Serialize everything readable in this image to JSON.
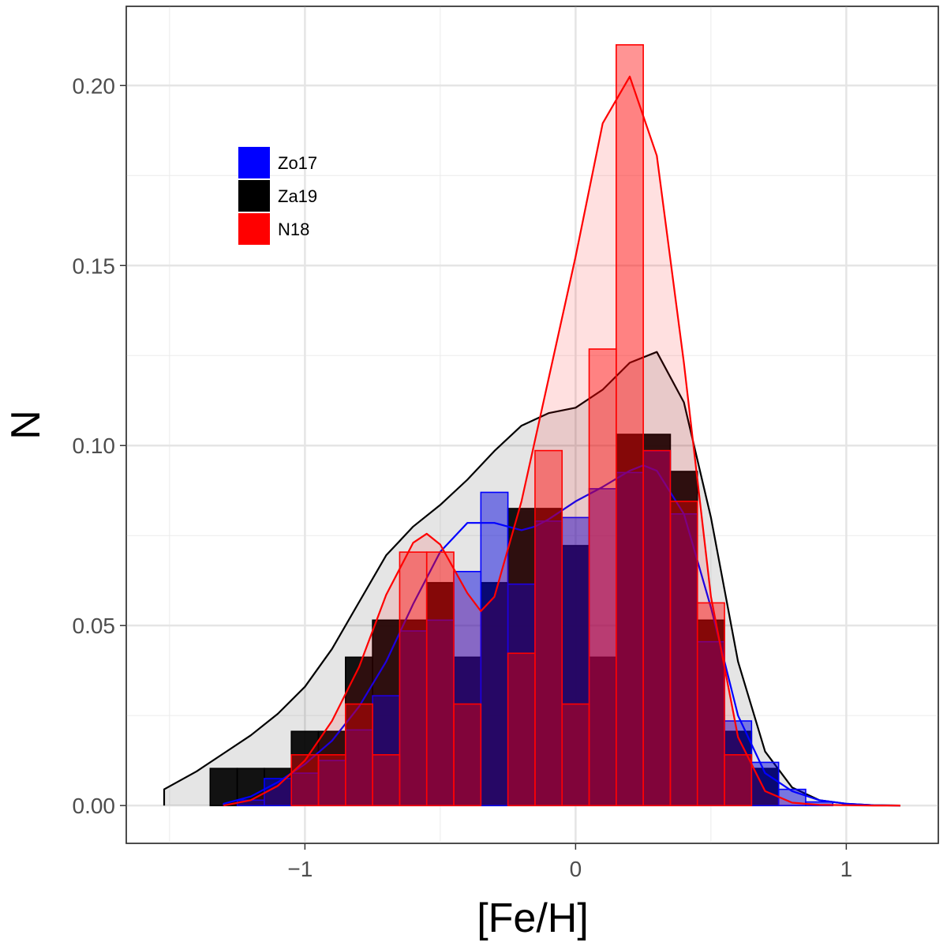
{
  "chart_data": {
    "type": "histogram+density",
    "xlabel": "[Fe/H]",
    "ylabel": "N",
    "xlim": [
      -1.66,
      1.34
    ],
    "ylim": [
      -0.0105,
      0.222
    ],
    "x_ticks": [
      -1,
      0,
      1
    ],
    "x_tick_labels": [
      "−1",
      "0",
      "1"
    ],
    "y_ticks": [
      0.0,
      0.05,
      0.1,
      0.15,
      0.2
    ],
    "y_tick_labels": [
      "0.00",
      "0.05",
      "0.10",
      "0.15",
      "0.20"
    ],
    "grid": true,
    "legend_position": "top-left",
    "legend": [
      {
        "label": "Zo17",
        "color": "#0000ff"
      },
      {
        "label": "Za19",
        "color": "#000000"
      },
      {
        "label": "N18",
        "color": "#ff0000"
      }
    ],
    "bin_width": 0.1,
    "series": [
      {
        "name": "Za19",
        "color": "#000000",
        "bin_starts": [
          -1.45,
          -1.35,
          -1.25,
          -1.15,
          -1.05,
          -0.95,
          -0.85,
          -0.75,
          -0.65,
          -0.55,
          -0.45,
          -0.35,
          -0.25,
          -0.15,
          -0.05,
          0.05,
          0.15,
          0.25,
          0.35,
          0.45,
          0.55,
          0.65,
          0.75
        ],
        "values": [
          0.0,
          0.0103,
          0.0103,
          0.0103,
          0.0206,
          0.0206,
          0.0412,
          0.0515,
          0.0515,
          0.0619,
          0.0412,
          0.0619,
          0.0825,
          0.0825,
          0.0722,
          0.0412,
          0.1031,
          0.1031,
          0.0928,
          0.0515,
          0.0206,
          0.0103,
          0.0
        ],
        "density_x": [
          -1.52,
          -1.4,
          -1.3,
          -1.2,
          -1.1,
          -1.0,
          -0.9,
          -0.8,
          -0.7,
          -0.6,
          -0.5,
          -0.4,
          -0.3,
          -0.2,
          -0.1,
          0.0,
          0.1,
          0.2,
          0.3,
          0.4,
          0.5,
          0.6,
          0.7,
          0.8,
          0.9,
          1.0,
          1.1,
          1.2
        ],
        "density_y": [
          0.0045,
          0.0095,
          0.0145,
          0.0195,
          0.0255,
          0.033,
          0.0435,
          0.0565,
          0.0695,
          0.0775,
          0.0835,
          0.0905,
          0.0985,
          0.1055,
          0.109,
          0.1105,
          0.1155,
          0.123,
          0.126,
          0.112,
          0.08,
          0.04,
          0.015,
          0.005,
          0.0015,
          0.0005,
          0.0001,
          0.0
        ]
      },
      {
        "name": "Zo17",
        "color": "#0000ff",
        "bin_starts": [
          -1.25,
          -1.15,
          -1.05,
          -0.95,
          -0.85,
          -0.75,
          -0.65,
          -0.55,
          -0.45,
          -0.35,
          -0.25,
          -0.15,
          -0.05,
          0.05,
          0.15,
          0.25,
          0.35,
          0.45,
          0.55,
          0.65,
          0.75,
          0.85
        ],
        "values": [
          0.0015,
          0.0075,
          0.009,
          0.0125,
          0.021,
          0.0305,
          0.0485,
          0.0515,
          0.065,
          0.087,
          0.0615,
          0.079,
          0.08,
          0.088,
          0.0925,
          0.0985,
          0.081,
          0.0455,
          0.0235,
          0.012,
          0.0045,
          0.001
        ],
        "density_x": [
          -1.3,
          -1.2,
          -1.1,
          -1.0,
          -0.9,
          -0.8,
          -0.7,
          -0.6,
          -0.5,
          -0.4,
          -0.3,
          -0.2,
          -0.15,
          -0.1,
          0.0,
          0.1,
          0.2,
          0.25,
          0.3,
          0.4,
          0.5,
          0.6,
          0.7,
          0.8,
          0.9,
          1.0,
          1.1,
          1.2
        ],
        "density_y": [
          0.0005,
          0.0025,
          0.0065,
          0.0115,
          0.018,
          0.0275,
          0.04,
          0.056,
          0.0705,
          0.0785,
          0.0785,
          0.0765,
          0.0775,
          0.0795,
          0.0845,
          0.0885,
          0.093,
          0.0945,
          0.093,
          0.081,
          0.055,
          0.025,
          0.009,
          0.004,
          0.0015,
          0.0005,
          0.0001,
          0.0
        ]
      },
      {
        "name": "N18",
        "color": "#ff0000",
        "bin_starts": [
          -1.05,
          -0.95,
          -0.85,
          -0.75,
          -0.65,
          -0.55,
          -0.45,
          -0.35,
          -0.25,
          -0.15,
          -0.05,
          0.05,
          0.15,
          0.25,
          0.35,
          0.45,
          0.55
        ],
        "values": [
          0.0141,
          0.0141,
          0.0282,
          0.0141,
          0.0704,
          0.0704,
          0.0282,
          0.0,
          0.0423,
          0.0986,
          0.0282,
          0.1268,
          0.2113,
          0.0986,
          0.0845,
          0.0563,
          0.0141
        ],
        "density_x": [
          -1.3,
          -1.2,
          -1.1,
          -1.0,
          -0.9,
          -0.8,
          -0.7,
          -0.6,
          -0.55,
          -0.5,
          -0.4,
          -0.35,
          -0.3,
          -0.2,
          -0.1,
          0.0,
          0.1,
          0.2,
          0.3,
          0.4,
          0.5,
          0.6,
          0.7,
          0.8,
          0.9,
          1.0,
          1.1,
          1.2
        ],
        "density_y": [
          0.0,
          0.0015,
          0.0055,
          0.0125,
          0.0235,
          0.0385,
          0.0585,
          0.073,
          0.0755,
          0.0725,
          0.059,
          0.054,
          0.058,
          0.0845,
          0.1185,
          0.1525,
          0.1895,
          0.2025,
          0.1805,
          0.123,
          0.058,
          0.019,
          0.004,
          0.0008,
          0.0002,
          0.0001,
          0.0,
          0.0
        ]
      }
    ]
  }
}
